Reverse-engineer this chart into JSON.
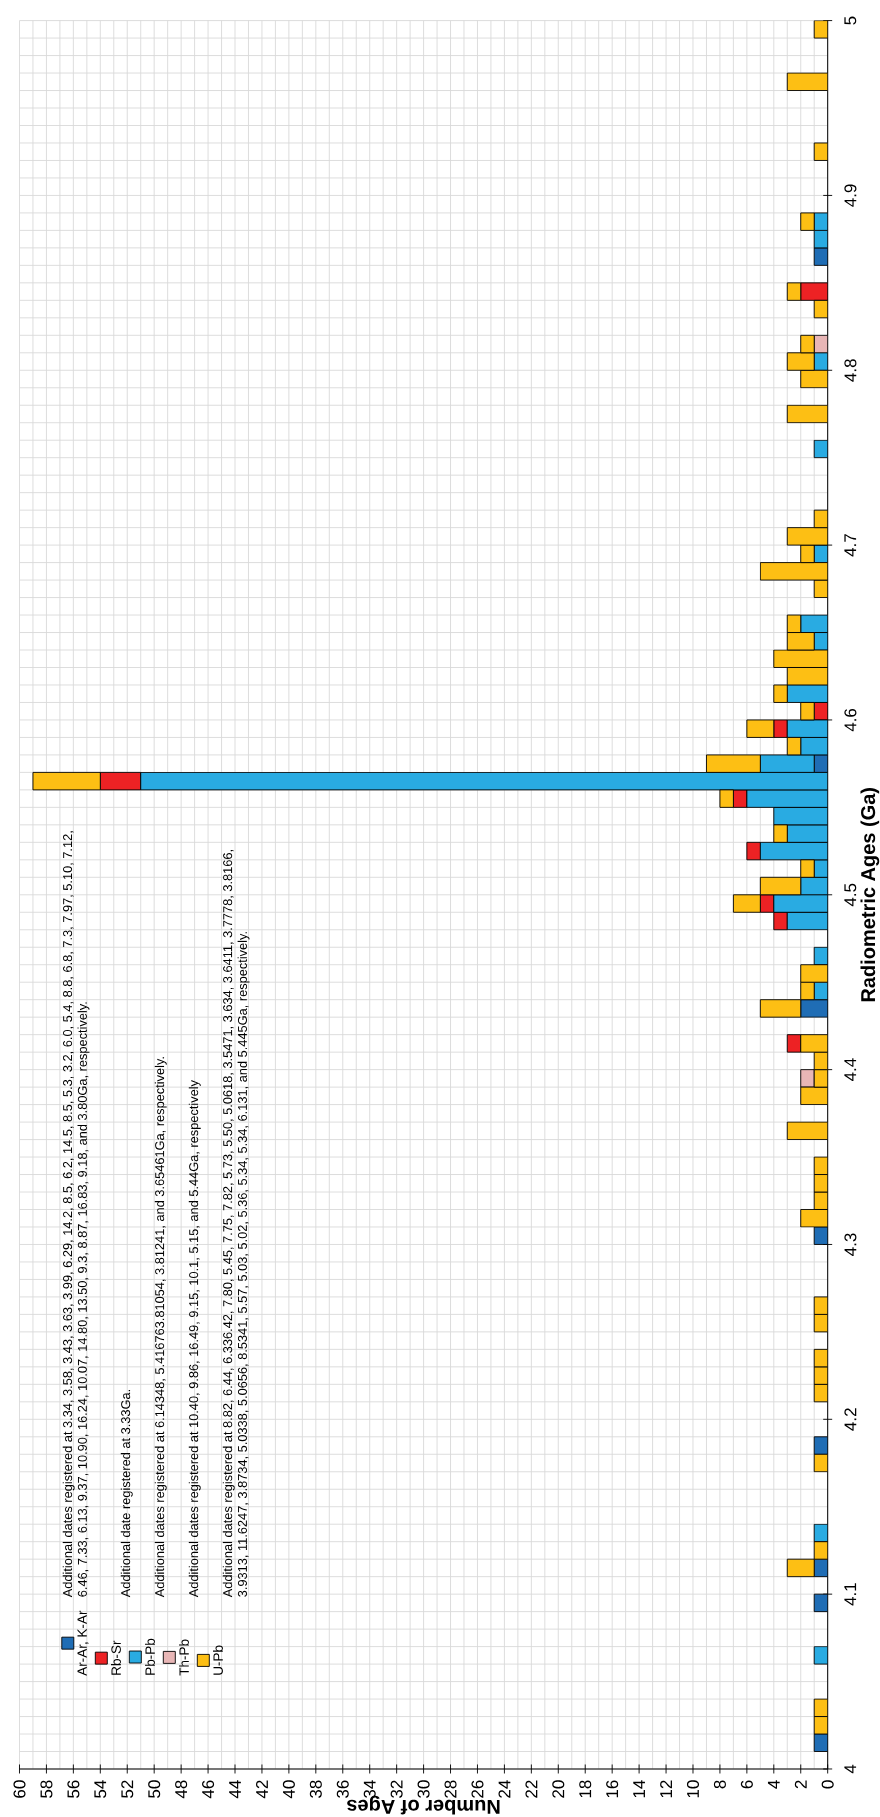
{
  "chart_data": {
    "type": "histogram",
    "orientation": "horizontal",
    "xlabel": "Number of Ages",
    "ylabel": "Radiometric Ages (Ga)",
    "bins": [
      4,
      4.01,
      4.02,
      4.03,
      4.04,
      4.05,
      4.06,
      4.07,
      4.08,
      4.09,
      4.1,
      4.11,
      4.12,
      4.13,
      4.14,
      4.15,
      4.16,
      4.17,
      4.18,
      4.19,
      4.2,
      4.21,
      4.22,
      4.23,
      4.24,
      4.25,
      4.26,
      4.27,
      4.28,
      4.29,
      4.3,
      4.31,
      4.32,
      4.33,
      4.34,
      4.35,
      4.36,
      4.37,
      4.38,
      4.39,
      4.4,
      4.41,
      4.42,
      4.43,
      4.44,
      4.45,
      4.46,
      4.47,
      4.48,
      4.49,
      4.5,
      4.51,
      4.52,
      4.53,
      4.54,
      4.55,
      4.56,
      4.57,
      4.58,
      4.59,
      4.6,
      4.61,
      4.62,
      4.63,
      4.64,
      4.65,
      4.66,
      4.67,
      4.68,
      4.69,
      4.7,
      4.71,
      4.72,
      4.73,
      4.74,
      4.75,
      4.76,
      4.77,
      4.78,
      4.79,
      4.8,
      4.81,
      4.82,
      4.83,
      4.84,
      4.85,
      4.86,
      4.87,
      4.88,
      4.89,
      4.9,
      4.91,
      4.92,
      4.93,
      4.94,
      4.95,
      4.96,
      4.97,
      4.98,
      4.99,
      5
    ],
    "series": [
      {
        "name": "Ar-Ar, K-Ar",
        "color": "#1f6db5",
        "values": [
          0,
          1,
          0,
          0,
          0,
          0,
          0,
          0,
          0,
          1,
          0,
          1,
          0,
          0,
          0,
          0,
          0,
          0,
          1,
          0,
          0,
          0,
          0,
          0,
          0,
          0,
          0,
          0,
          0,
          0,
          1,
          0,
          0,
          0,
          0,
          0,
          0,
          0,
          0,
          0,
          0,
          0,
          0,
          2,
          0,
          0,
          0,
          0,
          0,
          0,
          0,
          0,
          0,
          0,
          0,
          0,
          0,
          1,
          0,
          0,
          0,
          0,
          0,
          0,
          0,
          0,
          0,
          0,
          0,
          0,
          0,
          0,
          0,
          0,
          0,
          0,
          0,
          0,
          0,
          0,
          0,
          0,
          0,
          0,
          0,
          0,
          1,
          0,
          0,
          0,
          0,
          0,
          0,
          0,
          0,
          0,
          0,
          0,
          0,
          0
        ],
        "base": [
          null,
          0,
          null,
          null,
          null,
          null,
          null,
          null,
          null,
          0,
          null,
          0,
          null,
          null,
          null,
          null,
          null,
          null,
          0,
          null,
          null,
          null,
          null,
          null,
          null,
          null,
          null,
          null,
          null,
          null,
          0,
          null,
          null,
          null,
          null,
          null,
          null,
          null,
          null,
          null,
          null,
          null,
          null,
          0,
          null,
          null,
          null,
          null,
          null,
          null,
          null,
          null,
          null,
          null,
          null,
          null,
          null,
          0,
          null,
          null,
          null,
          null,
          null,
          null,
          null,
          null,
          null,
          null,
          null,
          null,
          null,
          null,
          null,
          null,
          null,
          null,
          null,
          null,
          null,
          null,
          null,
          null,
          null,
          null,
          null,
          null,
          0,
          null,
          null,
          null,
          null,
          null,
          null,
          null,
          null,
          null,
          null,
          null,
          null,
          null
        ]
      },
      {
        "name": "Rb-Sr",
        "color": "#ed2224",
        "values": [
          0,
          0,
          0,
          0,
          0,
          0,
          0,
          0,
          0,
          0,
          0,
          0,
          0,
          0,
          0,
          0,
          0,
          0,
          0,
          0,
          0,
          0,
          0,
          0,
          0,
          0,
          0,
          0,
          0,
          0,
          0,
          0,
          0,
          0,
          0,
          0,
          0,
          0,
          0,
          0,
          0,
          1,
          0,
          0,
          0,
          0,
          0,
          0,
          1,
          1,
          0,
          0,
          1,
          0,
          0,
          1,
          3,
          0,
          0,
          1,
          1,
          0,
          0,
          0,
          0,
          0,
          0,
          0,
          0,
          0,
          0,
          0,
          0,
          0,
          0,
          0,
          0,
          0,
          0,
          0,
          0,
          0,
          0,
          0,
          2,
          0,
          0,
          0,
          0,
          0,
          0,
          0,
          0,
          0,
          0,
          0,
          0,
          0,
          0,
          0
        ],
        "base": [
          null,
          null,
          null,
          null,
          null,
          null,
          null,
          null,
          null,
          null,
          null,
          null,
          null,
          null,
          null,
          null,
          null,
          null,
          null,
          null,
          null,
          null,
          null,
          null,
          null,
          null,
          null,
          null,
          null,
          null,
          null,
          null,
          null,
          null,
          null,
          null,
          null,
          null,
          null,
          null,
          null,
          2,
          null,
          null,
          null,
          null,
          null,
          null,
          3,
          4,
          null,
          null,
          5,
          null,
          null,
          6,
          51,
          null,
          null,
          3,
          0,
          null,
          null,
          null,
          null,
          null,
          null,
          null,
          null,
          null,
          null,
          null,
          null,
          null,
          null,
          null,
          null,
          null,
          null,
          null,
          null,
          null,
          null,
          null,
          0,
          null,
          null,
          null,
          null,
          null,
          null,
          null,
          null,
          null,
          null,
          null,
          null,
          null,
          null,
          null
        ]
      },
      {
        "name": "Pb-Pb",
        "color": "#29abe2",
        "values": [
          0,
          0,
          0,
          0,
          0,
          0,
          1,
          0,
          0,
          0,
          0,
          0,
          0,
          1,
          0,
          0,
          0,
          0,
          0,
          0,
          0,
          0,
          0,
          0,
          0,
          0,
          0,
          0,
          0,
          0,
          0,
          0,
          0,
          0,
          0,
          0,
          0,
          0,
          0,
          0,
          0,
          0,
          0,
          0,
          1,
          0,
          1,
          0,
          3,
          4,
          2,
          1,
          5,
          3,
          4,
          6,
          51,
          4,
          2,
          3,
          0,
          3,
          0,
          0,
          1,
          2,
          0,
          0,
          0,
          1,
          0,
          0,
          0,
          0,
          0,
          1,
          0,
          0,
          0,
          0,
          1,
          0,
          0,
          0,
          0,
          0,
          0,
          1,
          1,
          0,
          0,
          0,
          0,
          0,
          0,
          0,
          0,
          0,
          0,
          0
        ],
        "base": [
          null,
          null,
          null,
          null,
          null,
          null,
          0,
          null,
          null,
          null,
          null,
          null,
          null,
          0,
          null,
          null,
          null,
          null,
          null,
          null,
          null,
          null,
          null,
          null,
          null,
          null,
          null,
          null,
          null,
          null,
          null,
          null,
          null,
          null,
          null,
          null,
          null,
          null,
          null,
          null,
          null,
          null,
          null,
          null,
          0,
          null,
          0,
          null,
          0,
          0,
          0,
          0,
          0,
          0,
          0,
          0,
          0,
          1,
          0,
          0,
          null,
          0,
          null,
          null,
          0,
          0,
          null,
          null,
          null,
          0,
          null,
          null,
          null,
          null,
          null,
          0,
          null,
          null,
          null,
          null,
          0,
          null,
          null,
          null,
          null,
          null,
          null,
          0,
          0,
          null,
          null,
          null,
          null,
          null,
          null,
          null,
          null,
          null,
          null,
          null
        ]
      },
      {
        "name": "Th-Pb",
        "color": "#e8b6b6",
        "values": [
          0,
          0,
          0,
          0,
          0,
          0,
          0,
          0,
          0,
          0,
          0,
          0,
          0,
          0,
          0,
          0,
          0,
          0,
          0,
          0,
          0,
          0,
          0,
          0,
          0,
          0,
          0,
          0,
          0,
          0,
          0,
          0,
          0,
          0,
          0,
          0,
          0,
          0,
          0,
          1,
          0,
          0,
          0,
          0,
          0,
          0,
          0,
          0,
          0,
          0,
          0,
          0,
          0,
          0,
          0,
          0,
          0,
          0,
          0,
          0,
          0,
          0,
          0,
          0,
          0,
          0,
          0,
          0,
          0,
          0,
          0,
          0,
          0,
          0,
          0,
          0,
          0,
          0,
          0,
          0,
          0,
          1,
          0,
          0,
          0,
          0,
          0,
          0,
          0,
          0,
          0,
          0,
          0,
          0,
          0,
          0,
          0,
          0,
          0,
          0
        ],
        "base": [
          null,
          null,
          null,
          null,
          null,
          null,
          null,
          null,
          null,
          null,
          null,
          null,
          null,
          null,
          null,
          null,
          null,
          null,
          null,
          null,
          null,
          null,
          null,
          null,
          null,
          null,
          null,
          null,
          null,
          null,
          null,
          null,
          null,
          null,
          null,
          null,
          null,
          null,
          null,
          1,
          null,
          null,
          null,
          null,
          null,
          null,
          null,
          null,
          null,
          null,
          null,
          null,
          null,
          null,
          null,
          null,
          null,
          null,
          null,
          null,
          null,
          null,
          null,
          null,
          null,
          null,
          null,
          null,
          null,
          null,
          null,
          null,
          null,
          null,
          null,
          null,
          null,
          null,
          null,
          null,
          null,
          0,
          null,
          null,
          null,
          null,
          null,
          null,
          null,
          null,
          null,
          null,
          null,
          null,
          null,
          null,
          null,
          null,
          null,
          null
        ]
      },
      {
        "name": "U-Pb",
        "color": "#fdbf14",
        "values": [
          0,
          0,
          1,
          1,
          0,
          0,
          0,
          0,
          0,
          0,
          0,
          2,
          1,
          0,
          0,
          0,
          0,
          1,
          0,
          0,
          0,
          1,
          1,
          1,
          0,
          1,
          1,
          0,
          0,
          0,
          0,
          2,
          1,
          1,
          1,
          0,
          3,
          0,
          2,
          1,
          1,
          2,
          0,
          3,
          1,
          2,
          0,
          0,
          0,
          2,
          3,
          1,
          0,
          1,
          0,
          1,
          5,
          4,
          1,
          2,
          1,
          1,
          3,
          4,
          2,
          1,
          0,
          1,
          5,
          1,
          3,
          1,
          0,
          0,
          0,
          0,
          0,
          3,
          0,
          2,
          2,
          1,
          0,
          1,
          1,
          0,
          0,
          0,
          1,
          0,
          0,
          0,
          1,
          0,
          0,
          0,
          3,
          0,
          0,
          1
        ],
        "base": [
          null,
          null,
          0,
          0,
          null,
          null,
          null,
          null,
          null,
          null,
          null,
          1,
          0,
          null,
          null,
          null,
          null,
          0,
          null,
          null,
          null,
          0,
          0,
          0,
          null,
          0,
          0,
          null,
          null,
          null,
          null,
          0,
          0,
          0,
          0,
          null,
          0,
          null,
          0,
          0,
          0,
          0,
          null,
          2,
          1,
          0,
          null,
          null,
          null,
          5,
          2,
          1,
          null,
          3,
          null,
          7,
          54,
          5,
          2,
          4,
          1,
          3,
          0,
          0,
          1,
          2,
          null,
          0,
          0,
          1,
          0,
          0,
          null,
          null,
          null,
          null,
          null,
          0,
          null,
          0,
          1,
          1,
          null,
          0,
          2,
          null,
          null,
          null,
          1,
          null,
          null,
          null,
          0,
          null,
          null,
          null,
          0,
          null,
          null,
          0
        ]
      }
    ],
    "xlim": [
      60,
      0
    ],
    "ylim": [
      4,
      5
    ],
    "xticks": [
      0,
      2,
      4,
      6,
      8,
      10,
      12,
      14,
      16,
      18,
      20,
      22,
      24,
      26,
      28,
      30,
      32,
      34,
      36,
      38,
      40,
      42,
      44,
      46,
      48,
      50,
      52,
      54,
      56,
      58,
      60
    ],
    "yticks": [
      4,
      4.1,
      4.2,
      4.3,
      4.4,
      4.5,
      4.6,
      4.7,
      4.8,
      4.9,
      5
    ],
    "grid": true,
    "legend": "bottom left",
    "annotations": [
      "Additional dates registered at 3.34, 3.58, 3.43, 3.63, 3.99, 6.29, 14.2, 8.5, 6.2, 14.5, 8.5, 5.3, 3.2, 6.0, 5.4, 8.8, 6.8, 7.3, 7.97, 5.10, 7.12, 6.46, 7.33, 6.13, 9.37, 10.90, 16.24, 10.07, 14.80, 13.50, 9.3, 8.87, 16.83, 9.18, and 3.80Ga, respectively.",
      "Additional date registered at 3.33Ga.",
      "Additional dates registered at 6.14348, 5.416763.81054, 3.81241, and 3.65461Ga, respectively.",
      "Additional dates registered at 10.40, 9.86, 16.49, 9.15, 10.1, 5.15, and 5.44Ga, respectively",
      "Additional dates registered at 8.82, 6.44, 6.336.42, 7.80, 5.45, 7.75, 7.82, 5.73, 5.50, 5.0618, 3.5471, 3.634, 3.6411, 3.7778, 3.8166, 3.9313, 11.6247, 3.8734, 5.0338, 5.0656, 8.5341, 5.57, 5.03, 5.02, 5.36, 5.34, 5.34, 6.131, and 5.445Ga, respectively."
    ]
  }
}
